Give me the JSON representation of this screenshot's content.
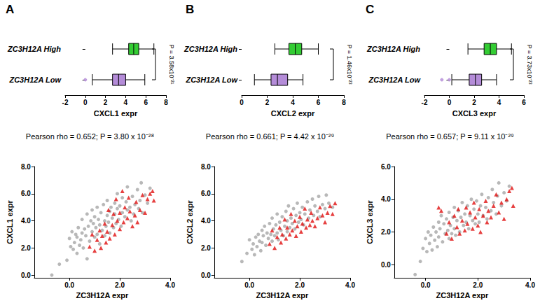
{
  "panel_labels": [
    "A",
    "B",
    "C"
  ],
  "chart_data": [
    {
      "type": "boxplot",
      "orientation": "horizontal",
      "categories": [
        "ZC3H12A High",
        "ZC3H12A Low"
      ],
      "colors": [
        "#33cc33",
        "#b48cd8"
      ],
      "values": [
        [
          2.7,
          4.3,
          4.8,
          5.3,
          6.8
        ],
        [
          0.7,
          2.7,
          3.3,
          4.0,
          5.9
        ]
      ],
      "outliers": [
        [],
        [
          0.0
        ]
      ],
      "xlabel": "CXCL1 expr",
      "xlim": [
        -2,
        8
      ],
      "xticks": [
        -2,
        0,
        2,
        4,
        6,
        8
      ],
      "annotation": "P = 3.58x10⁻²¹"
    },
    {
      "type": "boxplot",
      "orientation": "horizontal",
      "categories": [
        "ZC3H12A High",
        "ZC3H12A Low"
      ],
      "colors": [
        "#33cc33",
        "#b48cd8"
      ],
      "values": [
        [
          2.6,
          3.7,
          4.2,
          4.7,
          6.0
        ],
        [
          1.0,
          2.3,
          2.8,
          3.6,
          4.8
        ]
      ],
      "outliers": [
        [],
        []
      ],
      "xlabel": "CXCL2 expr",
      "xlim": [
        0,
        8
      ],
      "xticks": [
        0,
        2,
        4,
        6,
        8
      ],
      "annotation": "P = 1.46x10⁻²³"
    },
    {
      "type": "boxplot",
      "orientation": "horizontal",
      "categories": [
        "ZC3H12A High",
        "ZC3H12A Low"
      ],
      "colors": [
        "#33cc33",
        "#b48cd8"
      ],
      "values": [
        [
          1.5,
          2.8,
          3.3,
          3.8,
          5.0
        ],
        [
          0.2,
          1.6,
          2.1,
          2.6,
          3.8
        ]
      ],
      "outliers": [
        [],
        [
          -0.6,
          0.0
        ]
      ],
      "xlabel": "CXCL3 expr",
      "xlim": [
        -2,
        6
      ],
      "xticks": [
        -2,
        0,
        2,
        4,
        6
      ],
      "annotation": "P = 3.73x10⁻²³"
    },
    {
      "type": "scatter",
      "title": "Pearson rho = 0.652; P = 3.80 x 10⁻²⁸",
      "xlabel": "ZC3H12A expr",
      "ylabel": "CXCL1 expr",
      "xlim": [
        -1.4,
        4.0
      ],
      "xticks": [
        {
          "value": 0,
          "label": "0.0"
        },
        {
          "value": 2,
          "label": "2.0"
        },
        {
          "value": 4,
          "label": "4.0"
        }
      ],
      "ylim": [
        -0.2,
        8.0
      ],
      "yticks": [
        {
          "value": 0,
          "label": "0.0"
        },
        {
          "value": 2,
          "label": "2.0"
        },
        {
          "value": 4,
          "label": "4.0"
        },
        {
          "value": 6,
          "label": "6.0"
        },
        {
          "value": 8,
          "label": "8.0"
        }
      ],
      "series": [
        {
          "marker": "circle",
          "color": "#a6a6a6",
          "x": [
            -0.7,
            -0.4,
            -0.1,
            0.0,
            0.05,
            0.1,
            0.15,
            0.2,
            0.25,
            0.3,
            0.3,
            0.35,
            0.4,
            0.45,
            0.5,
            0.5,
            0.55,
            0.6,
            0.65,
            0.7,
            0.7,
            0.75,
            0.8,
            0.85,
            0.9,
            0.9,
            0.95,
            1.0,
            1.0,
            1.05,
            1.1,
            1.1,
            1.15,
            1.2,
            1.2,
            1.25,
            1.3,
            1.35,
            1.4,
            1.4,
            1.45,
            1.5,
            1.5,
            1.55,
            1.6,
            1.6,
            1.65,
            1.7,
            1.75,
            1.8,
            1.8,
            1.85,
            1.9,
            1.9,
            1.95,
            2.0,
            2.05,
            2.1,
            2.1,
            2.2,
            2.25,
            2.3,
            2.3,
            2.4,
            2.45,
            2.5,
            2.55,
            2.6,
            2.7,
            2.75,
            2.8,
            2.85,
            2.9,
            3.0,
            3.1,
            3.2
          ],
          "values": [
            0.0,
            0.8,
            1.1,
            2.7,
            2.1,
            3.2,
            1.9,
            2.4,
            3.0,
            2.8,
            1.6,
            3.5,
            2.2,
            2.6,
            4.1,
            3.1,
            2.0,
            3.4,
            2.9,
            4.5,
            1.2,
            3.6,
            2.5,
            4.0,
            3.2,
            4.8,
            3.8,
            2.8,
            4.3,
            3.5,
            5.0,
            3.0,
            4.1,
            3.7,
            2.3,
            4.6,
            3.3,
            5.2,
            4.0,
            2.9,
            3.6,
            4.4,
            5.5,
            3.9,
            4.7,
            3.1,
            5.0,
            4.2,
            3.5,
            5.3,
            4.5,
            3.8,
            6.0,
            4.9,
            4.1,
            5.1,
            3.6,
            4.6,
            5.7,
            4.3,
            5.4,
            6.5,
            4.8,
            5.0,
            4.0,
            5.8,
            4.5,
            5.2,
            6.3,
            4.9,
            5.5,
            6.8,
            4.6,
            5.9,
            5.3,
            6.4
          ]
        },
        {
          "marker": "triangle",
          "color": "#e01010",
          "x": [
            0.8,
            0.9,
            1.0,
            1.1,
            1.2,
            1.25,
            1.3,
            1.4,
            1.45,
            1.5,
            1.55,
            1.6,
            1.7,
            1.75,
            1.8,
            1.85,
            1.9,
            2.0,
            2.0,
            2.1,
            2.15,
            2.2,
            2.3,
            2.35,
            2.4,
            2.5,
            2.6,
            2.65,
            2.7,
            2.8,
            2.9,
            3.0,
            3.1,
            3.2,
            3.3,
            3.35
          ],
          "values": [
            2.1,
            3.0,
            1.8,
            2.6,
            3.3,
            2.0,
            2.9,
            3.8,
            2.4,
            3.2,
            4.8,
            2.7,
            3.7,
            4.5,
            3.0,
            5.6,
            4.0,
            3.4,
            4.6,
            6.2,
            3.9,
            5.0,
            4.2,
            5.7,
            4.7,
            3.6,
            4.4,
            5.4,
            3.9,
            4.8,
            5.9,
            4.6,
            5.6,
            6.0,
            6.2,
            5.5
          ]
        }
      ]
    },
    {
      "type": "scatter",
      "title": "Pearson rho = 0.661; P = 4.42 x 10⁻²⁹",
      "xlabel": "ZC3H12A expr",
      "ylabel": "CXCL2 expr",
      "xlim": [
        -1.4,
        4.0
      ],
      "xticks": [
        {
          "value": 0,
          "label": "0.0"
        },
        {
          "value": 2,
          "label": "2.0"
        },
        {
          "value": 4,
          "label": "4.0"
        }
      ],
      "ylim": [
        -0.2,
        8.0
      ],
      "yticks": [
        {
          "value": 0,
          "label": "0.0"
        },
        {
          "value": 2,
          "label": "2.0"
        },
        {
          "value": 4,
          "label": "4.0"
        },
        {
          "value": 6,
          "label": "6.0"
        },
        {
          "value": 8,
          "label": "8.0"
        }
      ],
      "series": [
        {
          "marker": "circle",
          "color": "#a6a6a6",
          "x": [
            -0.3,
            -0.1,
            0.0,
            0.1,
            0.15,
            0.2,
            0.25,
            0.3,
            0.35,
            0.4,
            0.45,
            0.5,
            0.5,
            0.55,
            0.6,
            0.65,
            0.7,
            0.75,
            0.8,
            0.85,
            0.9,
            0.9,
            0.95,
            1.0,
            1.05,
            1.1,
            1.1,
            1.15,
            1.2,
            1.25,
            1.3,
            1.35,
            1.4,
            1.45,
            1.5,
            1.5,
            1.55,
            1.6,
            1.65,
            1.7,
            1.75,
            1.8,
            1.85,
            1.9,
            1.95,
            2.0,
            2.05,
            2.1,
            2.15,
            2.2,
            2.3,
            2.35,
            2.4,
            2.5,
            2.55,
            2.6,
            2.7,
            2.75,
            2.8,
            2.9,
            3.0,
            3.05,
            3.15,
            3.3
          ],
          "values": [
            1.0,
            1.6,
            2.6,
            1.9,
            2.3,
            1.5,
            2.8,
            2.1,
            3.0,
            2.5,
            1.8,
            3.3,
            2.4,
            2.9,
            3.6,
            2.2,
            3.1,
            2.7,
            3.8,
            3.0,
            2.5,
            4.2,
            3.4,
            2.9,
            3.7,
            4.5,
            3.1,
            2.6,
            3.9,
            3.3,
            4.3,
            2.9,
            3.6,
            4.7,
            3.2,
            4.0,
            5.1,
            3.5,
            4.2,
            3.8,
            4.9,
            3.4,
            4.4,
            5.3,
            3.9,
            4.6,
            4.1,
            5.0,
            3.7,
            4.5,
            5.4,
            4.2,
            4.8,
            5.6,
            4.4,
            5.1,
            4.7,
            5.8,
            4.3,
            5.2,
            4.9,
            5.9,
            5.3,
            5.0
          ]
        },
        {
          "marker": "triangle",
          "color": "#e01010",
          "x": [
            0.8,
            0.9,
            1.0,
            1.1,
            1.2,
            1.25,
            1.3,
            1.4,
            1.45,
            1.5,
            1.6,
            1.65,
            1.7,
            1.8,
            1.85,
            1.9,
            2.0,
            2.05,
            2.1,
            2.2,
            2.25,
            2.3,
            2.4,
            2.45,
            2.5,
            2.6,
            2.7,
            2.8,
            2.9,
            3.0,
            3.1,
            3.2,
            3.3,
            3.4
          ],
          "values": [
            2.3,
            3.3,
            2.0,
            2.8,
            3.5,
            2.4,
            3.0,
            4.1,
            2.7,
            3.5,
            3.0,
            4.5,
            3.3,
            4.0,
            2.9,
            3.6,
            4.3,
            3.2,
            3.8,
            4.9,
            3.5,
            4.1,
            3.7,
            4.6,
            4.0,
            3.6,
            4.2,
            5.0,
            4.4,
            3.9,
            4.6,
            5.1,
            4.5,
            5.3
          ]
        }
      ]
    },
    {
      "type": "scatter",
      "title": "Pearson rho = 0.657; P = 9.11 x 10⁻²⁹",
      "xlabel": "ZC3H12A expr",
      "ylabel": "CXCL3 expr",
      "xlim": [
        -1.2,
        4.0
      ],
      "xticks": [
        {
          "value": 0,
          "label": "0.0"
        },
        {
          "value": 2,
          "label": "2.0"
        },
        {
          "value": 4,
          "label": "4.0"
        }
      ],
      "ylim": [
        -0.8,
        6.0
      ],
      "yticks": [
        {
          "value": 0,
          "label": "0.0"
        },
        {
          "value": 2,
          "label": "2.0"
        },
        {
          "value": 4,
          "label": "4.0"
        },
        {
          "value": 6,
          "label": "6.0"
        }
      ],
      "series": [
        {
          "marker": "circle",
          "color": "#a6a6a6",
          "x": [
            -0.4,
            -0.2,
            -0.1,
            0.0,
            0.05,
            0.1,
            0.15,
            0.2,
            0.25,
            0.3,
            0.35,
            0.4,
            0.45,
            0.5,
            0.5,
            0.55,
            0.6,
            0.65,
            0.7,
            0.75,
            0.8,
            0.85,
            0.9,
            0.9,
            0.95,
            1.0,
            1.05,
            1.1,
            1.1,
            1.15,
            1.2,
            1.25,
            1.3,
            1.35,
            1.4,
            1.45,
            1.5,
            1.55,
            1.6,
            1.65,
            1.7,
            1.75,
            1.8,
            1.85,
            1.9,
            1.95,
            2.0,
            2.05,
            2.1,
            2.15,
            2.2,
            2.3,
            2.35,
            2.4,
            2.5,
            2.55,
            2.6,
            2.7,
            2.75,
            2.8,
            2.9,
            3.0,
            3.1,
            3.2
          ],
          "values": [
            -0.6,
            0.2,
            1.0,
            1.6,
            0.8,
            2.0,
            1.3,
            1.8,
            0.9,
            2.3,
            1.5,
            2.0,
            1.1,
            2.6,
            1.7,
            2.2,
            3.0,
            1.4,
            2.5,
            1.9,
            2.8,
            2.1,
            1.6,
            3.2,
            2.4,
            1.9,
            2.9,
            3.5,
            2.2,
            1.8,
            2.7,
            3.3,
            2.0,
            2.9,
            3.8,
            2.4,
            3.1,
            2.6,
            3.6,
            2.2,
            3.0,
            4.0,
            2.7,
            3.4,
            2.5,
            3.9,
            3.1,
            2.6,
            3.6,
            4.3,
            3.0,
            3.5,
            2.8,
            4.1,
            3.3,
            4.6,
            3.8,
            3.1,
            4.2,
            5.0,
            3.6,
            4.4,
            3.9,
            4.8
          ]
        },
        {
          "marker": "triangle",
          "color": "#e01010",
          "x": [
            0.5,
            0.6,
            0.8,
            0.9,
            1.0,
            1.1,
            1.2,
            1.25,
            1.3,
            1.4,
            1.5,
            1.55,
            1.6,
            1.7,
            1.8,
            1.85,
            1.9,
            2.0,
            2.05,
            2.1,
            2.2,
            2.3,
            2.35,
            2.4,
            2.5,
            2.6,
            2.7,
            2.8,
            2.9,
            3.0,
            3.1,
            3.2,
            3.3,
            3.35
          ],
          "values": [
            3.5,
            3.3,
            1.9,
            2.6,
            1.6,
            3.0,
            2.3,
            3.4,
            1.9,
            2.7,
            2.1,
            3.5,
            2.5,
            3.2,
            2.2,
            3.8,
            2.9,
            2.4,
            3.4,
            2.0,
            3.0,
            3.9,
            2.6,
            3.3,
            2.9,
            3.6,
            4.3,
            3.2,
            3.8,
            2.8,
            4.0,
            4.5,
            4.7,
            3.6
          ]
        }
      ]
    }
  ]
}
